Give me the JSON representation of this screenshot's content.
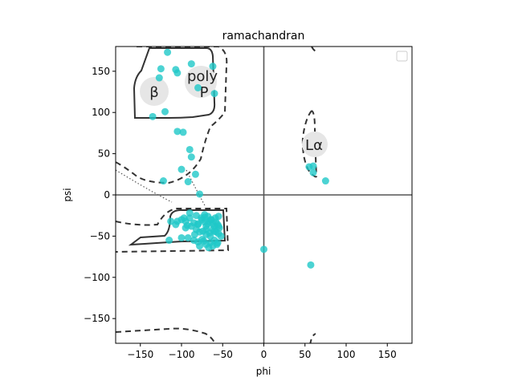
{
  "chart_data": {
    "type": "scatter",
    "title": "ramachandran",
    "xlabel": "phi",
    "ylabel": "psi",
    "xlim": [
      -180,
      180
    ],
    "ylim": [
      -180,
      180
    ],
    "xticks": [
      -150,
      -100,
      -50,
      0,
      50,
      100,
      150
    ],
    "yticks": [
      -150,
      -100,
      -50,
      0,
      50,
      100,
      150
    ],
    "grid": false,
    "legend": "top-right (empty)",
    "point_color": "#1fc8c8",
    "background_regions": [
      {
        "label": "β"
      },
      {
        "label": "poly P"
      },
      {
        "label": "Lα"
      }
    ],
    "series": [
      {
        "x": [
          -117,
          -125,
          -105,
          -107,
          -88,
          -62,
          -80,
          -60,
          -127,
          -135,
          -120,
          -105,
          -98,
          -90,
          -88,
          -83,
          -100,
          -122,
          -92,
          -78,
          -100,
          -90,
          -95,
          -85,
          -80,
          -75,
          -72,
          -70,
          -68,
          -66,
          -64,
          -62,
          -60,
          -58,
          -56,
          -54,
          -95,
          -88,
          -82,
          -78,
          -74,
          -70,
          -66,
          -62,
          -58,
          -55,
          -52,
          -100,
          -92,
          -85,
          -80,
          -75,
          -70,
          -65,
          -60,
          -56,
          -105,
          -97,
          -90,
          -82,
          -76,
          -72,
          -68,
          -64,
          -59,
          -55,
          -113,
          -107,
          -93,
          -84,
          -78,
          -73,
          -67,
          -62,
          -57,
          -115,
          -80,
          -70,
          -65,
          -60,
          -55,
          -72,
          0,
          57,
          55,
          60,
          60,
          75
        ],
        "y": [
          173,
          153,
          148,
          152,
          159,
          156,
          130,
          123,
          142,
          95,
          101,
          77,
          76,
          55,
          46,
          25,
          31,
          17,
          16,
          1,
          -30,
          -28,
          -32,
          -34,
          -36,
          -30,
          -33,
          -38,
          -35,
          -32,
          -30,
          -35,
          -38,
          -33,
          -36,
          -40,
          -40,
          -38,
          -42,
          -45,
          -44,
          -48,
          -46,
          -42,
          -45,
          -47,
          -50,
          -52,
          -52,
          -55,
          -57,
          -54,
          -60,
          -58,
          -55,
          -58,
          -32,
          -28,
          -22,
          -25,
          -28,
          -24,
          -26,
          -30,
          -28,
          -26,
          -32,
          -36,
          -37,
          -48,
          -62,
          -56,
          -64,
          -62,
          -60,
          -55,
          -35,
          -42,
          -50,
          -44,
          -38,
          -27,
          -66,
          -85,
          34,
          35,
          27,
          17
        ]
      }
    ]
  }
}
